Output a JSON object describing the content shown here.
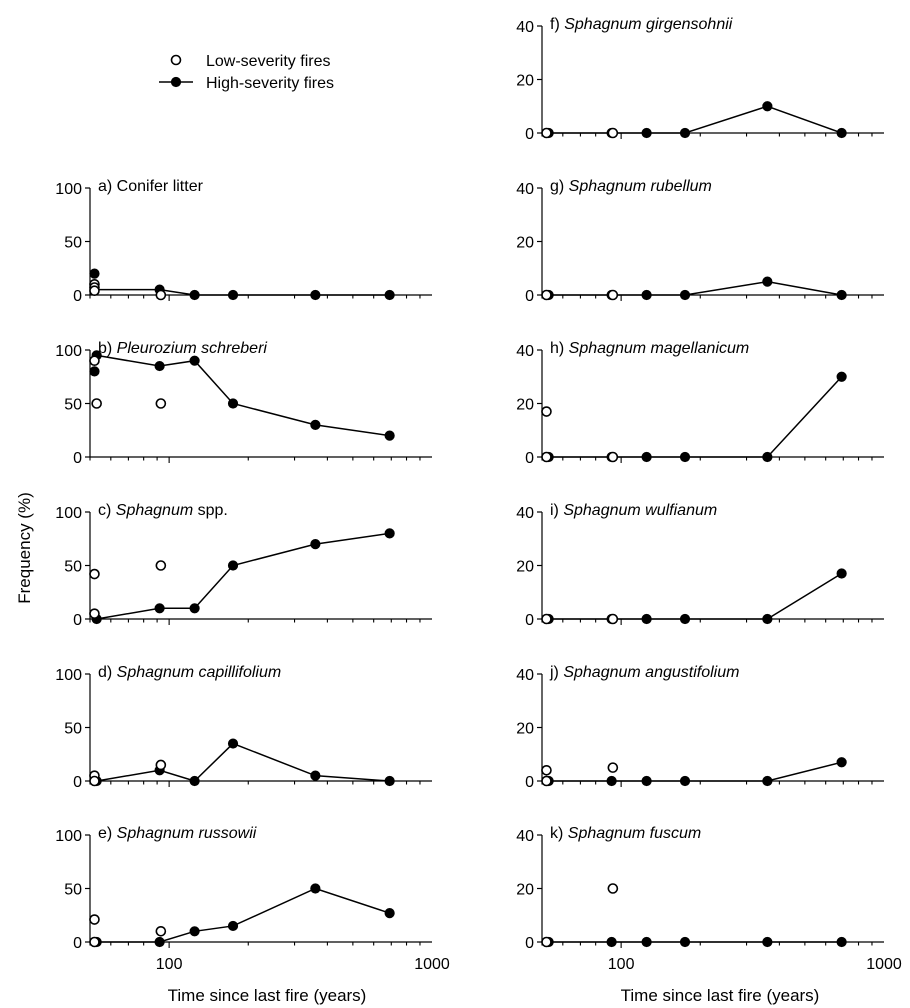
{
  "legend": {
    "low": "Low-severity fires",
    "high": "High-severity fires"
  },
  "ylabel": "Frequency (%)",
  "xlabel": "Time since last fire (years)",
  "colors": {
    "ink": "#000000",
    "open_fill": "#ffffff"
  },
  "chart_data": [
    {
      "type": "scatter",
      "panel": "a)",
      "title_plain": "Conifer litter",
      "title_italic": "",
      "xscale": "log",
      "xlim": [
        50,
        1000
      ],
      "xticks": [
        100,
        1000
      ],
      "ylim": [
        0,
        100
      ],
      "yticks": [
        0,
        50,
        100
      ],
      "series": [
        {
          "name": "High-severity fires",
          "x": [
            52,
            92,
            125,
            175,
            360,
            690
          ],
          "y": [
            5,
            5,
            0,
            0,
            0,
            0
          ]
        },
        {
          "name": "High-severity fires",
          "x": [
            52,
            52
          ],
          "y": [
            20,
            5
          ],
          "markers_only": true
        },
        {
          "name": "Low-severity fires",
          "x": [
            52,
            52,
            52,
            93
          ],
          "y": [
            10,
            7,
            4,
            0
          ]
        }
      ]
    },
    {
      "type": "scatter",
      "panel": "b)",
      "title_plain": "",
      "title_italic": "Pleurozium schreberi",
      "xscale": "log",
      "xlim": [
        50,
        1000
      ],
      "xticks": [
        100,
        1000
      ],
      "ylim": [
        0,
        100
      ],
      "yticks": [
        0,
        50,
        100
      ],
      "series": [
        {
          "name": "High-severity fires",
          "x": [
            53,
            92,
            125,
            175,
            360,
            690
          ],
          "y": [
            95,
            85,
            90,
            50,
            30,
            20
          ]
        },
        {
          "name": "High-severity fires",
          "x": [
            52
          ],
          "y": [
            80
          ],
          "markers_only": true
        },
        {
          "name": "Low-severity fires",
          "x": [
            52,
            53,
            93
          ],
          "y": [
            90,
            50,
            50
          ]
        }
      ]
    },
    {
      "type": "scatter",
      "panel": "c)",
      "title_plain": "spp.",
      "title_italic": "Sphagnum",
      "xscale": "log",
      "xlim": [
        50,
        1000
      ],
      "xticks": [
        100,
        1000
      ],
      "ylim": [
        0,
        100
      ],
      "yticks": [
        0,
        50,
        100
      ],
      "series": [
        {
          "name": "High-severity fires",
          "x": [
            53,
            92,
            125,
            175,
            360,
            690
          ],
          "y": [
            0,
            10,
            10,
            50,
            70,
            80
          ]
        },
        {
          "name": "Low-severity fires",
          "x": [
            52,
            52,
            93
          ],
          "y": [
            42,
            5,
            50
          ]
        }
      ]
    },
    {
      "type": "scatter",
      "panel": "d)",
      "title_plain": "",
      "title_italic": "Sphagnum capillifolium",
      "xscale": "log",
      "xlim": [
        50,
        1000
      ],
      "xticks": [
        100,
        1000
      ],
      "ylim": [
        0,
        100
      ],
      "yticks": [
        0,
        50,
        100
      ],
      "series": [
        {
          "name": "High-severity fires",
          "x": [
            53,
            92,
            125,
            175,
            360,
            690
          ],
          "y": [
            0,
            10,
            0,
            35,
            5,
            0
          ]
        },
        {
          "name": "Low-severity fires",
          "x": [
            52,
            52,
            93
          ],
          "y": [
            5,
            0,
            15
          ]
        }
      ]
    },
    {
      "type": "scatter",
      "panel": "e)",
      "title_plain": "",
      "title_italic": "Sphagnum russowii",
      "xscale": "log",
      "xlim": [
        50,
        1000
      ],
      "xticks": [
        100,
        1000
      ],
      "ylim": [
        0,
        100
      ],
      "yticks": [
        0,
        50,
        100
      ],
      "series": [
        {
          "name": "High-severity fires",
          "x": [
            53,
            92,
            125,
            175,
            360,
            690
          ],
          "y": [
            0,
            0,
            10,
            15,
            50,
            27
          ]
        },
        {
          "name": "Low-severity fires",
          "x": [
            52,
            52,
            93
          ],
          "y": [
            21,
            0,
            10
          ]
        }
      ]
    },
    {
      "type": "scatter",
      "panel": "f)",
      "title_plain": "",
      "title_italic": "Sphagnum girgensohnii",
      "xscale": "log",
      "xlim": [
        50,
        1000
      ],
      "xticks": [
        100,
        1000
      ],
      "ylim": [
        0,
        40
      ],
      "yticks": [
        0,
        20,
        40
      ],
      "series": [
        {
          "name": "High-severity fires",
          "x": [
            53,
            92,
            125,
            175,
            360,
            690
          ],
          "y": [
            0,
            0,
            0,
            0,
            10,
            0
          ]
        },
        {
          "name": "Low-severity fires",
          "x": [
            52,
            93
          ],
          "y": [
            0,
            0
          ]
        }
      ]
    },
    {
      "type": "scatter",
      "panel": "g)",
      "title_plain": "",
      "title_italic": "Sphagnum rubellum",
      "xscale": "log",
      "xlim": [
        50,
        1000
      ],
      "xticks": [
        100,
        1000
      ],
      "ylim": [
        0,
        40
      ],
      "yticks": [
        0,
        20,
        40
      ],
      "series": [
        {
          "name": "High-severity fires",
          "x": [
            53,
            92,
            125,
            175,
            360,
            690
          ],
          "y": [
            0,
            0,
            0,
            0,
            5,
            0
          ]
        },
        {
          "name": "Low-severity fires",
          "x": [
            52,
            93
          ],
          "y": [
            0,
            0
          ]
        }
      ]
    },
    {
      "type": "scatter",
      "panel": "h)",
      "title_plain": "",
      "title_italic": "Sphagnum magellanicum",
      "xscale": "log",
      "xlim": [
        50,
        1000
      ],
      "xticks": [
        100,
        1000
      ],
      "ylim": [
        0,
        40
      ],
      "yticks": [
        0,
        20,
        40
      ],
      "series": [
        {
          "name": "High-severity fires",
          "x": [
            53,
            92,
            125,
            175,
            360,
            690
          ],
          "y": [
            0,
            0,
            0,
            0,
            0,
            30
          ]
        },
        {
          "name": "Low-severity fires",
          "x": [
            52,
            52,
            93
          ],
          "y": [
            17,
            0,
            0
          ]
        }
      ]
    },
    {
      "type": "scatter",
      "panel": "i)",
      "title_plain": "",
      "title_italic": "Sphagnum wulfianum",
      "xscale": "log",
      "xlim": [
        50,
        1000
      ],
      "xticks": [
        100,
        1000
      ],
      "ylim": [
        0,
        40
      ],
      "yticks": [
        0,
        20,
        40
      ],
      "series": [
        {
          "name": "High-severity fires",
          "x": [
            53,
            92,
            125,
            175,
            360,
            690
          ],
          "y": [
            0,
            0,
            0,
            0,
            0,
            17
          ]
        },
        {
          "name": "Low-severity fires",
          "x": [
            52,
            93
          ],
          "y": [
            0,
            0
          ]
        }
      ]
    },
    {
      "type": "scatter",
      "panel": "j)",
      "title_plain": "",
      "title_italic": "Sphagnum angustifolium",
      "xscale": "log",
      "xlim": [
        50,
        1000
      ],
      "xticks": [
        100,
        1000
      ],
      "ylim": [
        0,
        40
      ],
      "yticks": [
        0,
        20,
        40
      ],
      "series": [
        {
          "name": "High-severity fires",
          "x": [
            53,
            92,
            125,
            175,
            360,
            690
          ],
          "y": [
            0,
            0,
            0,
            0,
            0,
            7
          ]
        },
        {
          "name": "Low-severity fires",
          "x": [
            52,
            52,
            93
          ],
          "y": [
            4,
            0,
            5
          ]
        }
      ]
    },
    {
      "type": "scatter",
      "panel": "k)",
      "title_plain": "",
      "title_italic": "Sphagnum fuscum",
      "xscale": "log",
      "xlim": [
        50,
        1000
      ],
      "xticks": [
        100,
        1000
      ],
      "ylim": [
        0,
        40
      ],
      "yticks": [
        0,
        20,
        40
      ],
      "series": [
        {
          "name": "High-severity fires",
          "x": [
            53,
            92,
            125,
            175,
            360,
            690
          ],
          "y": [
            0,
            0,
            0,
            0,
            0,
            0
          ]
        },
        {
          "name": "Low-severity fires",
          "x": [
            52,
            93
          ],
          "y": [
            0,
            20
          ]
        }
      ]
    }
  ]
}
